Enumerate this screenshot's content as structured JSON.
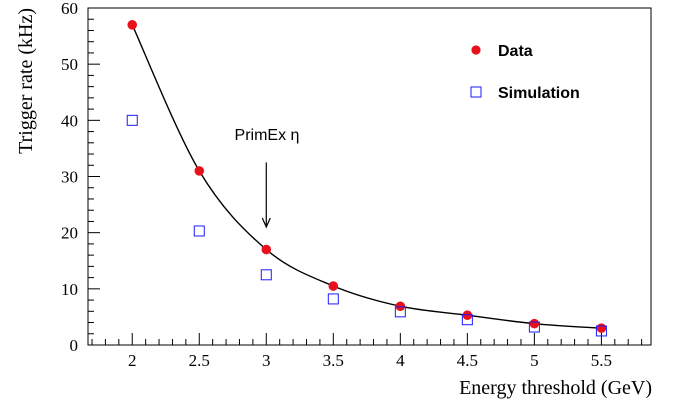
{
  "chart_data": {
    "type": "scatter",
    "xlabel": "Energy threshold  (GeV)",
    "ylabel": "Trigger rate  (kHz)",
    "xlim": [
      1.67,
      5.87
    ],
    "ylim": [
      0,
      60
    ],
    "x_ticks": [
      "2",
      "2.5",
      "3",
      "3.5",
      "4",
      "4.5",
      "5",
      "5.5"
    ],
    "y_ticks": [
      "0",
      "10",
      "20",
      "30",
      "40",
      "50",
      "60"
    ],
    "grid": false,
    "legend_position": "top-right",
    "series": [
      {
        "name": "Data",
        "marker": "filled-circle",
        "color": "#e8101a",
        "line": true,
        "x": [
          2.0,
          2.5,
          3.0,
          3.5,
          4.0,
          4.5,
          5.0,
          5.5
        ],
        "y": [
          57.0,
          31.0,
          17.0,
          10.5,
          6.9,
          5.3,
          3.8,
          3.0
        ]
      },
      {
        "name": "Simulation",
        "marker": "open-square",
        "color": "#1a1aff",
        "line": false,
        "x": [
          2.0,
          2.5,
          3.0,
          3.5,
          4.0,
          4.5,
          5.0,
          5.5
        ],
        "y": [
          40.0,
          20.3,
          12.5,
          8.2,
          5.9,
          4.5,
          3.2,
          2.5
        ]
      }
    ],
    "annotation": {
      "text": "PrimEx η",
      "x": 3.0,
      "arrow_from_y": 32.5,
      "arrow_to_y": 21.0
    }
  }
}
